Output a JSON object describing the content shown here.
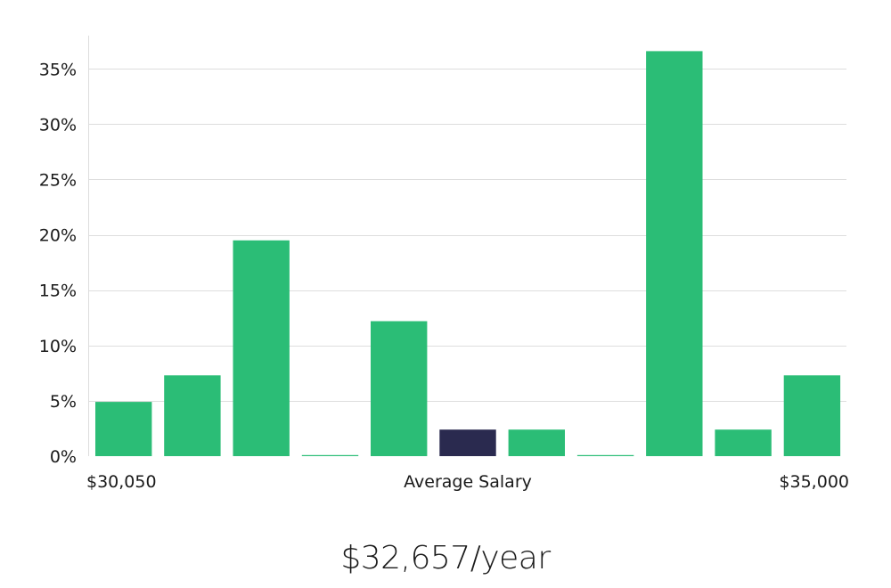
{
  "salary_display": "$32,657/year",
  "colors": {
    "bar": "#2bbd76",
    "bar_highlight": "#2a2a4f",
    "grid": "#dddddd"
  },
  "chart_data": {
    "type": "bar",
    "categories": [
      "1",
      "2",
      "3",
      "4",
      "5",
      "6",
      "7",
      "8",
      "9",
      "10",
      "11"
    ],
    "values": [
      4.9,
      7.3,
      19.5,
      0.1,
      12.2,
      2.4,
      2.4,
      0.1,
      36.6,
      2.4,
      7.3
    ],
    "highlight_index": 5,
    "ylim": [
      0,
      38
    ],
    "yticks": [
      0,
      5,
      10,
      15,
      20,
      25,
      30,
      35
    ],
    "ytick_labels": [
      "0%",
      "5%",
      "10%",
      "15%",
      "20%",
      "25%",
      "30%",
      "35%"
    ],
    "x_min_label": "$30,050",
    "x_max_label": "$35,000",
    "xlabel": "Average Salary",
    "grid": true
  }
}
